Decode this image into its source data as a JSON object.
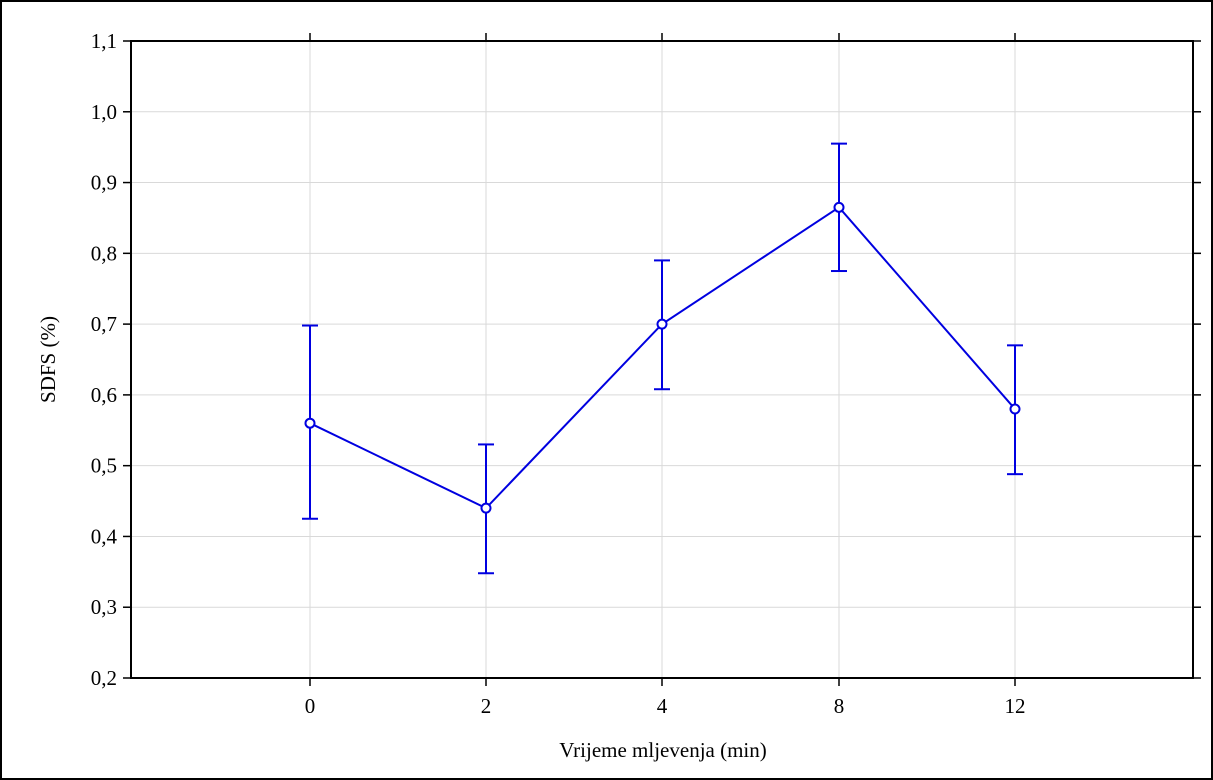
{
  "chart_data": {
    "type": "line",
    "title": "",
    "xlabel": "Vrijeme mljevenja (min)",
    "ylabel": "SDFS (%)",
    "categories": [
      "0",
      "2",
      "4",
      "8",
      "12"
    ],
    "series": [
      {
        "values": [
          0.56,
          0.44,
          0.7,
          0.865,
          0.58
        ],
        "error_lower": [
          0.425,
          0.348,
          0.608,
          0.775,
          0.488
        ],
        "error_upper": [
          0.698,
          0.53,
          0.79,
          0.955,
          0.67
        ],
        "color": "#0000e0"
      }
    ],
    "ylim": [
      0.2,
      1.1
    ],
    "yticks": [
      "0,2",
      "0,3",
      "0,4",
      "0,5",
      "0,6",
      "0,7",
      "0,8",
      "0,9",
      "1,0",
      "1,1"
    ],
    "grid": true,
    "legend": "none"
  }
}
